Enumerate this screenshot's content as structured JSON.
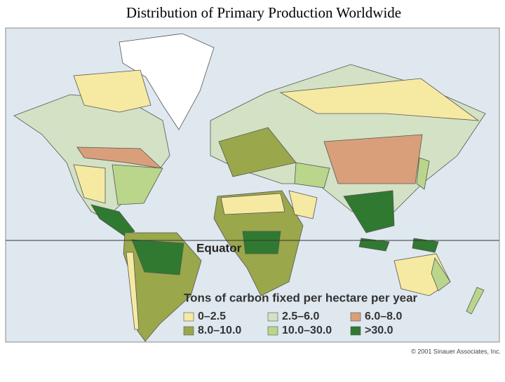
{
  "title": "Distribution of Primary Production Worldwide",
  "map": {
    "equator_label": "Equator",
    "legend": {
      "title": "Tons of carbon fixed per hectare per year",
      "items": [
        {
          "label": "0–2.5",
          "color": "#f6e9a2"
        },
        {
          "label": "2.5–6.0",
          "color": "#d3e1c4"
        },
        {
          "label": "6.0–8.0",
          "color": "#d99f7b"
        },
        {
          "label": "8.0–10.0",
          "color": "#9aa74b"
        },
        {
          "label": "10.0–30.0",
          "color": "#b9d68b"
        },
        {
          "label": ">30.0",
          "color": "#2f7a30"
        }
      ]
    },
    "credit": "© 2001 Sinauer Associates, Inc."
  }
}
